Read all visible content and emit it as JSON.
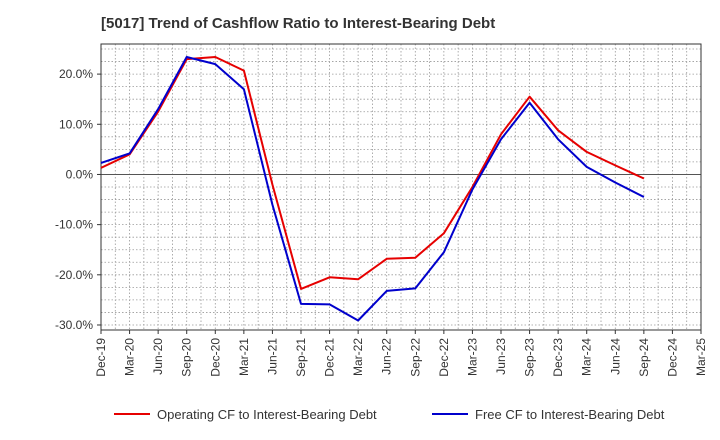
{
  "chart_data": {
    "type": "line",
    "title": "[5017]  Trend of Cashflow Ratio to Interest-Bearing Debt",
    "xlabel": "",
    "ylabel": "",
    "ylim": [
      -31,
      26
    ],
    "yticks": [
      20,
      10,
      0,
      -10,
      -20,
      -30
    ],
    "ytick_labels": [
      "20.0%",
      "10.0%",
      "0.0%",
      "-10.0%",
      "-20.0%",
      "-30.0%"
    ],
    "x_tick_labels": [
      "Dec-19",
      "Mar-20",
      "Jun-20",
      "Sep-20",
      "Dec-20",
      "Mar-21",
      "Jun-21",
      "Sep-21",
      "Dec-21",
      "Mar-22",
      "Jun-22",
      "Sep-22",
      "Dec-22",
      "Mar-23",
      "Jun-23",
      "Sep-23",
      "Dec-23",
      "Mar-24",
      "Jun-24",
      "Sep-24",
      "Dec-24",
      "Mar-25"
    ],
    "grid": true,
    "legend_position": "bottom",
    "series": [
      {
        "name": "Operating CF to Interest-Bearing Debt",
        "color": "#e60000",
        "points": [
          [
            0,
            1.3
          ],
          [
            1,
            4.0
          ],
          [
            2,
            12.5
          ],
          [
            3,
            23.0
          ],
          [
            4,
            23.4
          ],
          [
            5,
            20.7
          ],
          [
            6,
            -2.0
          ],
          [
            7,
            -22.8
          ],
          [
            8,
            -20.5
          ],
          [
            9,
            -20.9
          ],
          [
            10,
            -16.8
          ],
          [
            11,
            -16.6
          ],
          [
            12,
            -11.7
          ],
          [
            13,
            -2.5
          ],
          [
            14,
            8.0
          ],
          [
            15,
            15.5
          ],
          [
            16,
            8.8
          ],
          [
            17,
            4.5
          ],
          [
            18,
            1.8
          ],
          [
            19,
            -0.8
          ]
        ]
      },
      {
        "name": "Free CF to Interest-Bearing Debt",
        "color": "#0000cc",
        "points": [
          [
            0,
            2.3
          ],
          [
            1,
            4.2
          ],
          [
            2,
            13.0
          ],
          [
            3,
            23.4
          ],
          [
            4,
            22.0
          ],
          [
            5,
            17.0
          ],
          [
            6,
            -6.0
          ],
          [
            7,
            -25.8
          ],
          [
            8,
            -25.9
          ],
          [
            9,
            -29.1
          ],
          [
            10,
            -23.2
          ],
          [
            11,
            -22.7
          ],
          [
            12,
            -15.5
          ],
          [
            13,
            -3.0
          ],
          [
            14,
            7.0
          ],
          [
            15,
            14.3
          ],
          [
            16,
            7.0
          ],
          [
            17,
            1.5
          ],
          [
            18,
            -1.6
          ],
          [
            19,
            -4.5
          ]
        ]
      }
    ]
  }
}
